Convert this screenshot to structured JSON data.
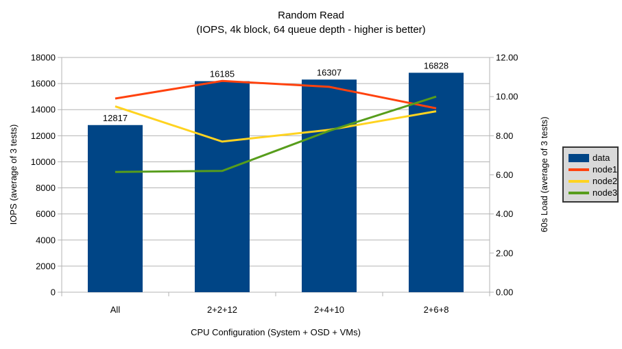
{
  "title": "Random Read",
  "subtitle": "(IOPS, 4k block, 64 queue depth - higher is better)",
  "chart_data": {
    "type": "bar",
    "categories": [
      "All",
      "2+2+12",
      "2+4+10",
      "2+6+8"
    ],
    "series": [
      {
        "name": "data",
        "type": "bar",
        "axis": "left",
        "color": "#004586",
        "values": [
          12817,
          16185,
          16307,
          16828
        ],
        "data_labels": true
      },
      {
        "name": "node1",
        "type": "line",
        "axis": "right",
        "color": "#ff420e",
        "values": [
          9.9,
          10.8,
          10.5,
          9.4
        ]
      },
      {
        "name": "node2",
        "type": "line",
        "axis": "right",
        "color": "#ffd320",
        "values": [
          9.5,
          7.7,
          8.3,
          9.25
        ]
      },
      {
        "name": "node3",
        "type": "line",
        "axis": "right",
        "color": "#579d1c",
        "values": [
          6.15,
          6.2,
          8.25,
          10.0
        ]
      }
    ],
    "title": "Random Read",
    "subtitle": "(IOPS, 4k block, 64 queue depth - higher is better)",
    "xlabel": "CPU Configuration (System + OSD + VMs)",
    "ylabel_left": "IOPS (average of 3 tests)",
    "ylabel_right": "60s Load (average of 3 tests)",
    "ylim_left": [
      0,
      18000
    ],
    "ytick_step_left": 2000,
    "ylim_right": [
      0,
      12
    ],
    "ytick_step_right": 2,
    "ytick_format_right_decimals": 2,
    "grid": "horizontal",
    "legend_position": "right",
    "colors": {
      "grid": "#b3b3b3",
      "axis": "#b3b3b3",
      "text": "#000000",
      "background": "#ffffff",
      "legend_bg": "#d9d9d9",
      "legend_border": "#333333"
    }
  }
}
